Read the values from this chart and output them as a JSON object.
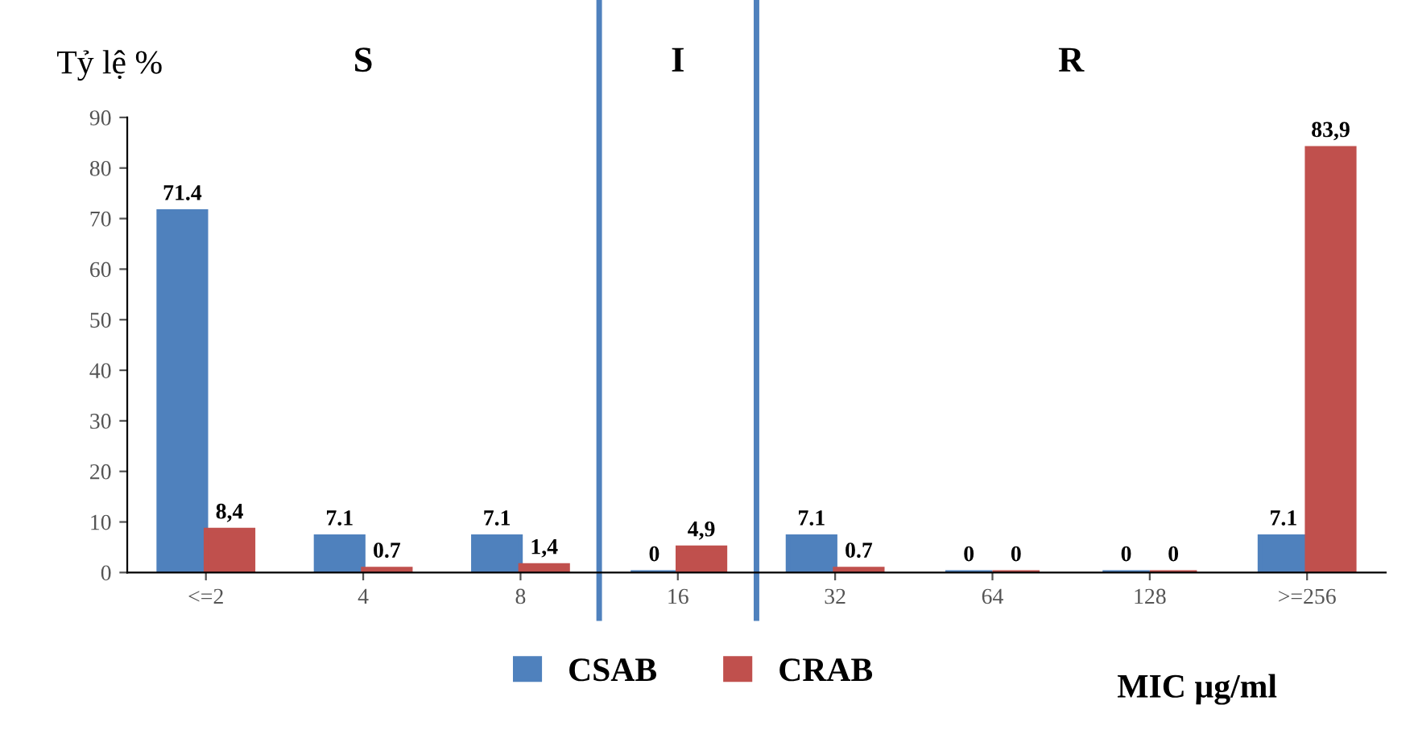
{
  "chart_data": {
    "type": "bar",
    "ylabel": "Tỷ lệ %",
    "xlabel": "MIC µg/ml",
    "categories": [
      "<=2",
      "4",
      "8",
      "16",
      "32",
      "64",
      "128",
      ">=256"
    ],
    "series": [
      {
        "name": "CSAB",
        "color": "#4f81bd",
        "values": [
          71.4,
          7.1,
          7.1,
          0,
          7.1,
          0,
          0,
          7.1
        ],
        "value_labels": [
          "71.4",
          "7.1",
          "7.1",
          "0",
          "7.1",
          "0",
          "0",
          "7.1"
        ]
      },
      {
        "name": "CRAB",
        "color": "#c0504d",
        "values": [
          8.4,
          0.7,
          1.4,
          4.9,
          0.7,
          0,
          0,
          83.9
        ],
        "value_labels": [
          "8,4",
          "0.7",
          "1,4",
          "4,9",
          "0.7",
          "0",
          "0",
          "83,9"
        ]
      }
    ],
    "ylim": [
      0,
      90
    ],
    "yticks": [
      0,
      10,
      20,
      30,
      40,
      50,
      60,
      70,
      80,
      90
    ],
    "annotations": [
      "S",
      "I",
      "R"
    ],
    "legend": "bottom",
    "grid": false
  }
}
